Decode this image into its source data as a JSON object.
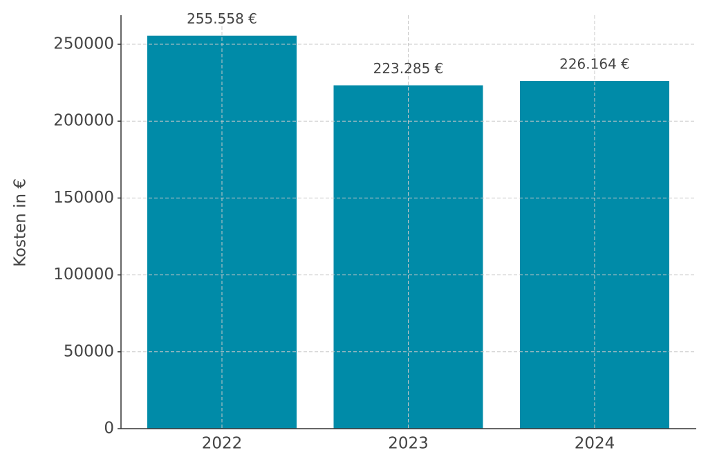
{
  "chart_data": {
    "type": "bar",
    "y_label": "Kosten in €",
    "categories": [
      "2022",
      "2023",
      "2024"
    ],
    "values": [
      255558,
      223285,
      226164
    ],
    "value_labels": [
      "255.558 €",
      "223.285 €",
      "226.164 €"
    ],
    "color": "#008ba8",
    "ylim": [
      0,
      268900
    ],
    "yticks": [
      0,
      50000,
      100000,
      150000,
      200000,
      250000
    ],
    "grid": true
  }
}
